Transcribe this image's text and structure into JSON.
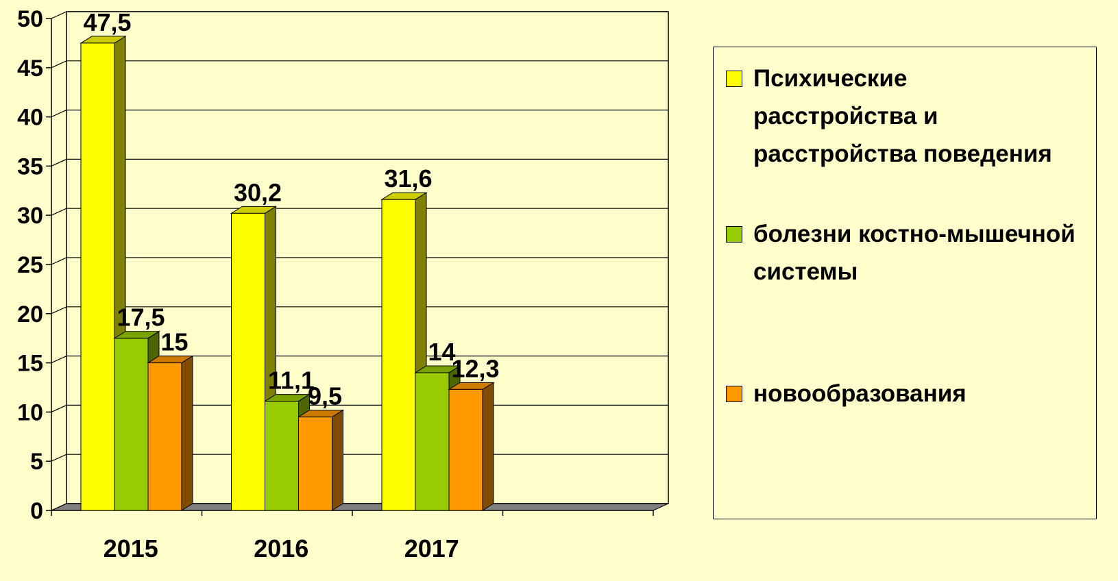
{
  "chart_data": {
    "type": "bar3d",
    "categories": [
      "2015",
      "2016",
      "2017",
      null
    ],
    "series": [
      {
        "name": "Психические расстройства и расстройства поведения",
        "color": "#ffff00",
        "values": [
          47.5,
          30.2,
          31.6,
          null
        ],
        "value_labels": [
          "47,5",
          "30,2",
          "31,6",
          null
        ]
      },
      {
        "name": "болезни костно-мышечной системы",
        "color": "#99cc00",
        "values": [
          17.5,
          11.1,
          14,
          null
        ],
        "value_labels": [
          "17,5",
          "11,1",
          "14",
          null
        ]
      },
      {
        "name": "новообразования",
        "color": "#ff9900",
        "values": [
          15,
          9.5,
          12.3,
          null
        ],
        "value_labels": [
          "15",
          "9,5",
          "12,3",
          null
        ]
      }
    ],
    "ylim": [
      0,
      50
    ],
    "yticks": [
      0,
      5,
      10,
      15,
      20,
      25,
      30,
      35,
      40,
      45,
      50
    ],
    "grid": true,
    "legend": "right"
  }
}
